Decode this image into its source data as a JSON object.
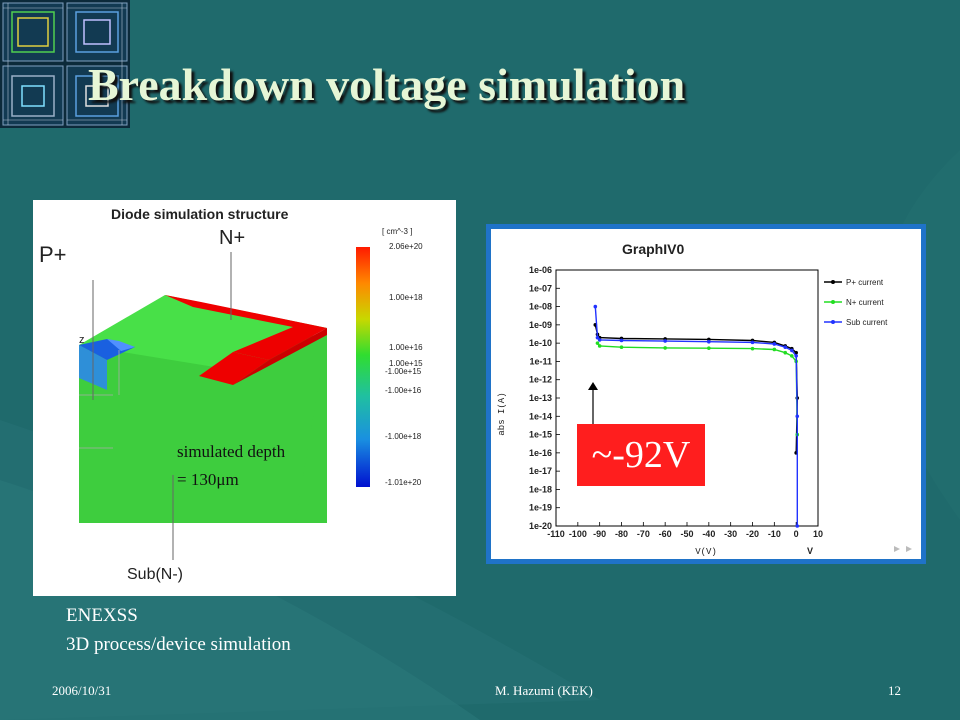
{
  "slide": {
    "title": "Breakdown voltage simulation",
    "caption_line1": "ENEXSS",
    "caption_line2": "3D process/device simulation"
  },
  "diode_figure": {
    "heading": "Diode simulation structure",
    "label_p": "P+",
    "label_n": "N+",
    "label_sub": "Sub(N-)",
    "label_z": "z",
    "depth_line1": "simulated depth",
    "depth_line2": "= 130μm",
    "colorbar_unit": "[ cm^-3 ]",
    "colorbar_labels": [
      "2.06e+20",
      "1.00e+18",
      "1.00e+16",
      "1.00e+15",
      "-1.00e+15",
      "-1.00e+16",
      "-1.00e+18",
      "-1.01e+20"
    ]
  },
  "chart_data": {
    "type": "line",
    "title": "GraphIV0",
    "xlabel": "V(V)",
    "ylabel": "abs I(A)",
    "log_y": true,
    "xlim": [
      -110,
      10
    ],
    "ylim": [
      "1e-20",
      "1e-06"
    ],
    "x_ticks": [
      "-110",
      "-100",
      "-90",
      "-80",
      "-70",
      "-60",
      "-50",
      "-40",
      "-30",
      "-20",
      "-10",
      "0",
      "10"
    ],
    "y_ticks": [
      "1e-06",
      "1e-07",
      "1e-08",
      "1e-09",
      "1e-10",
      "1e-11",
      "1e-12",
      "1e-13",
      "1e-14",
      "1e-15",
      "1e-16",
      "1e-17",
      "1e-18",
      "1e-19",
      "1e-20"
    ],
    "x_unit_label": "V",
    "series": [
      {
        "name": "P+ current",
        "color": "#000000",
        "x": [
          -92,
          -91,
          -90,
          -80,
          -60,
          -40,
          -20,
          -10,
          -5,
          -2,
          0,
          0.5,
          0
        ],
        "y": [
          1e-09,
          3e-10,
          2e-10,
          1.8e-10,
          1.7e-10,
          1.6e-10,
          1.4e-10,
          1.1e-10,
          7e-11,
          5e-11,
          3e-11,
          1e-13,
          1e-16
        ]
      },
      {
        "name": "N+ current",
        "color": "#22dd22",
        "x": [
          -91,
          -90,
          -80,
          -60,
          -40,
          -20,
          -10,
          -5,
          -2,
          0,
          0.5
        ],
        "y": [
          1e-10,
          7e-11,
          6e-11,
          5.5e-11,
          5.3e-11,
          5e-11,
          4.5e-11,
          3e-11,
          2e-11,
          1e-11,
          1e-15
        ]
      },
      {
        "name": "Sub current",
        "color": "#2233ff",
        "x": [
          -92,
          -91,
          -90,
          -80,
          -60,
          -40,
          -20,
          -10,
          -5,
          -2,
          0,
          0.5,
          0.5
        ],
        "y": [
          1e-08,
          2e-10,
          1.5e-10,
          1.4e-10,
          1.3e-10,
          1.2e-10,
          1.1e-10,
          9e-11,
          6e-11,
          4e-11,
          2e-11,
          1e-14,
          1e-20
        ]
      }
    ],
    "annotation": "~-92V"
  },
  "footer": {
    "date": "2006/10/31",
    "author": "M. Hazumi (KEK)",
    "page": "12"
  }
}
